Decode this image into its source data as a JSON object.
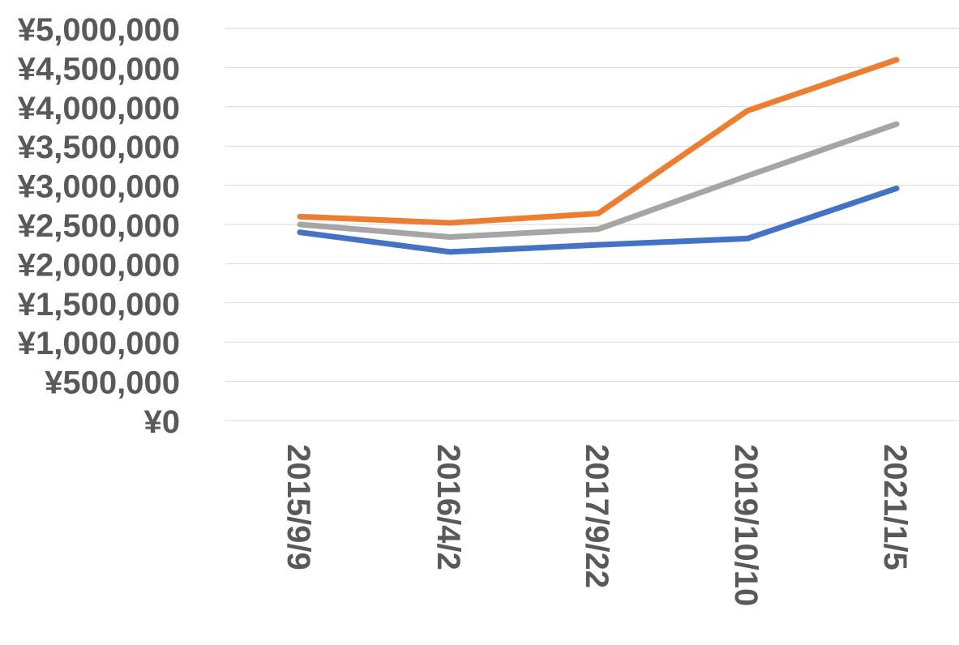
{
  "chart_data": {
    "type": "line",
    "title": "",
    "xlabel": "",
    "ylabel": "",
    "categories": [
      "2015/9/9",
      "2016/4/2",
      "2017/9/22",
      "2019/10/10",
      "2021/1/5"
    ],
    "ylim": [
      0,
      5000000
    ],
    "y_ticks": [
      0,
      500000,
      1000000,
      1500000,
      2000000,
      2500000,
      3000000,
      3500000,
      4000000,
      4500000,
      5000000
    ],
    "y_tick_labels": [
      "¥0",
      "¥500,000",
      "¥1,000,000",
      "¥1,500,000",
      "¥2,000,000",
      "¥2,500,000",
      "¥3,000,000",
      "¥3,500,000",
      "¥4,000,000",
      "¥4,500,000",
      "¥5,000,000"
    ],
    "grid": true,
    "legend": "none",
    "series": [
      {
        "color": "#4472c4",
        "values": [
          2400000,
          2150000,
          2240000,
          2320000,
          2960000
        ]
      },
      {
        "color": "#ed7d31",
        "values": [
          2600000,
          2520000,
          2640000,
          3950000,
          4600000
        ]
      },
      {
        "color": "#a5a5a5",
        "values": [
          2500000,
          2340000,
          2440000,
          3120000,
          3780000
        ]
      }
    ]
  }
}
